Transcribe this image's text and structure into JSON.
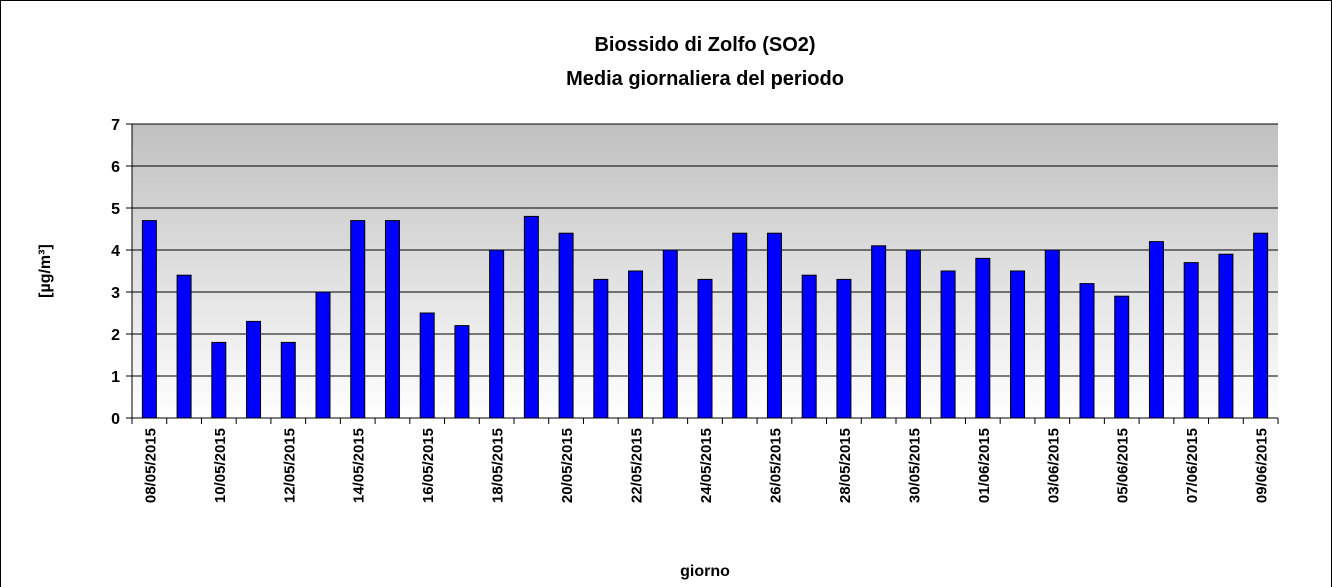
{
  "chart_data": {
    "type": "bar",
    "title": "Biossido di Zolfo (SO2)",
    "subtitle": "Media giornaliera del periodo",
    "y_label": "[µg/m³]",
    "x_label": "giorno",
    "categories": [
      "08/05/2015",
      null,
      "10/05/2015",
      null,
      "12/05/2015",
      null,
      "14/05/2015",
      null,
      "16/05/2015",
      null,
      "18/05/2015",
      null,
      "20/05/2015",
      null,
      "22/05/2015",
      null,
      "24/05/2015",
      null,
      "26/05/2015",
      null,
      "28/05/2015",
      null,
      "30/05/2015",
      null,
      "01/06/2015",
      null,
      "03/06/2015",
      null,
      "05/06/2015",
      null,
      "07/06/2015",
      null,
      "09/06/2015"
    ],
    "values": [
      4.7,
      3.4,
      1.8,
      2.3,
      1.8,
      3.0,
      4.7,
      4.7,
      2.5,
      2.2,
      4.0,
      4.8,
      4.4,
      3.3,
      3.5,
      4.0,
      3.3,
      4.4,
      4.4,
      3.4,
      3.3,
      4.1,
      4.0,
      3.5,
      3.8,
      3.5,
      4.0,
      3.2,
      2.9,
      4.2,
      3.7,
      3.9,
      4.4
    ],
    "color": "#0000ff",
    "ylim": [
      0,
      7
    ],
    "yticks": [
      0,
      1,
      2,
      3,
      4,
      5,
      6,
      7
    ],
    "grid": true
  }
}
